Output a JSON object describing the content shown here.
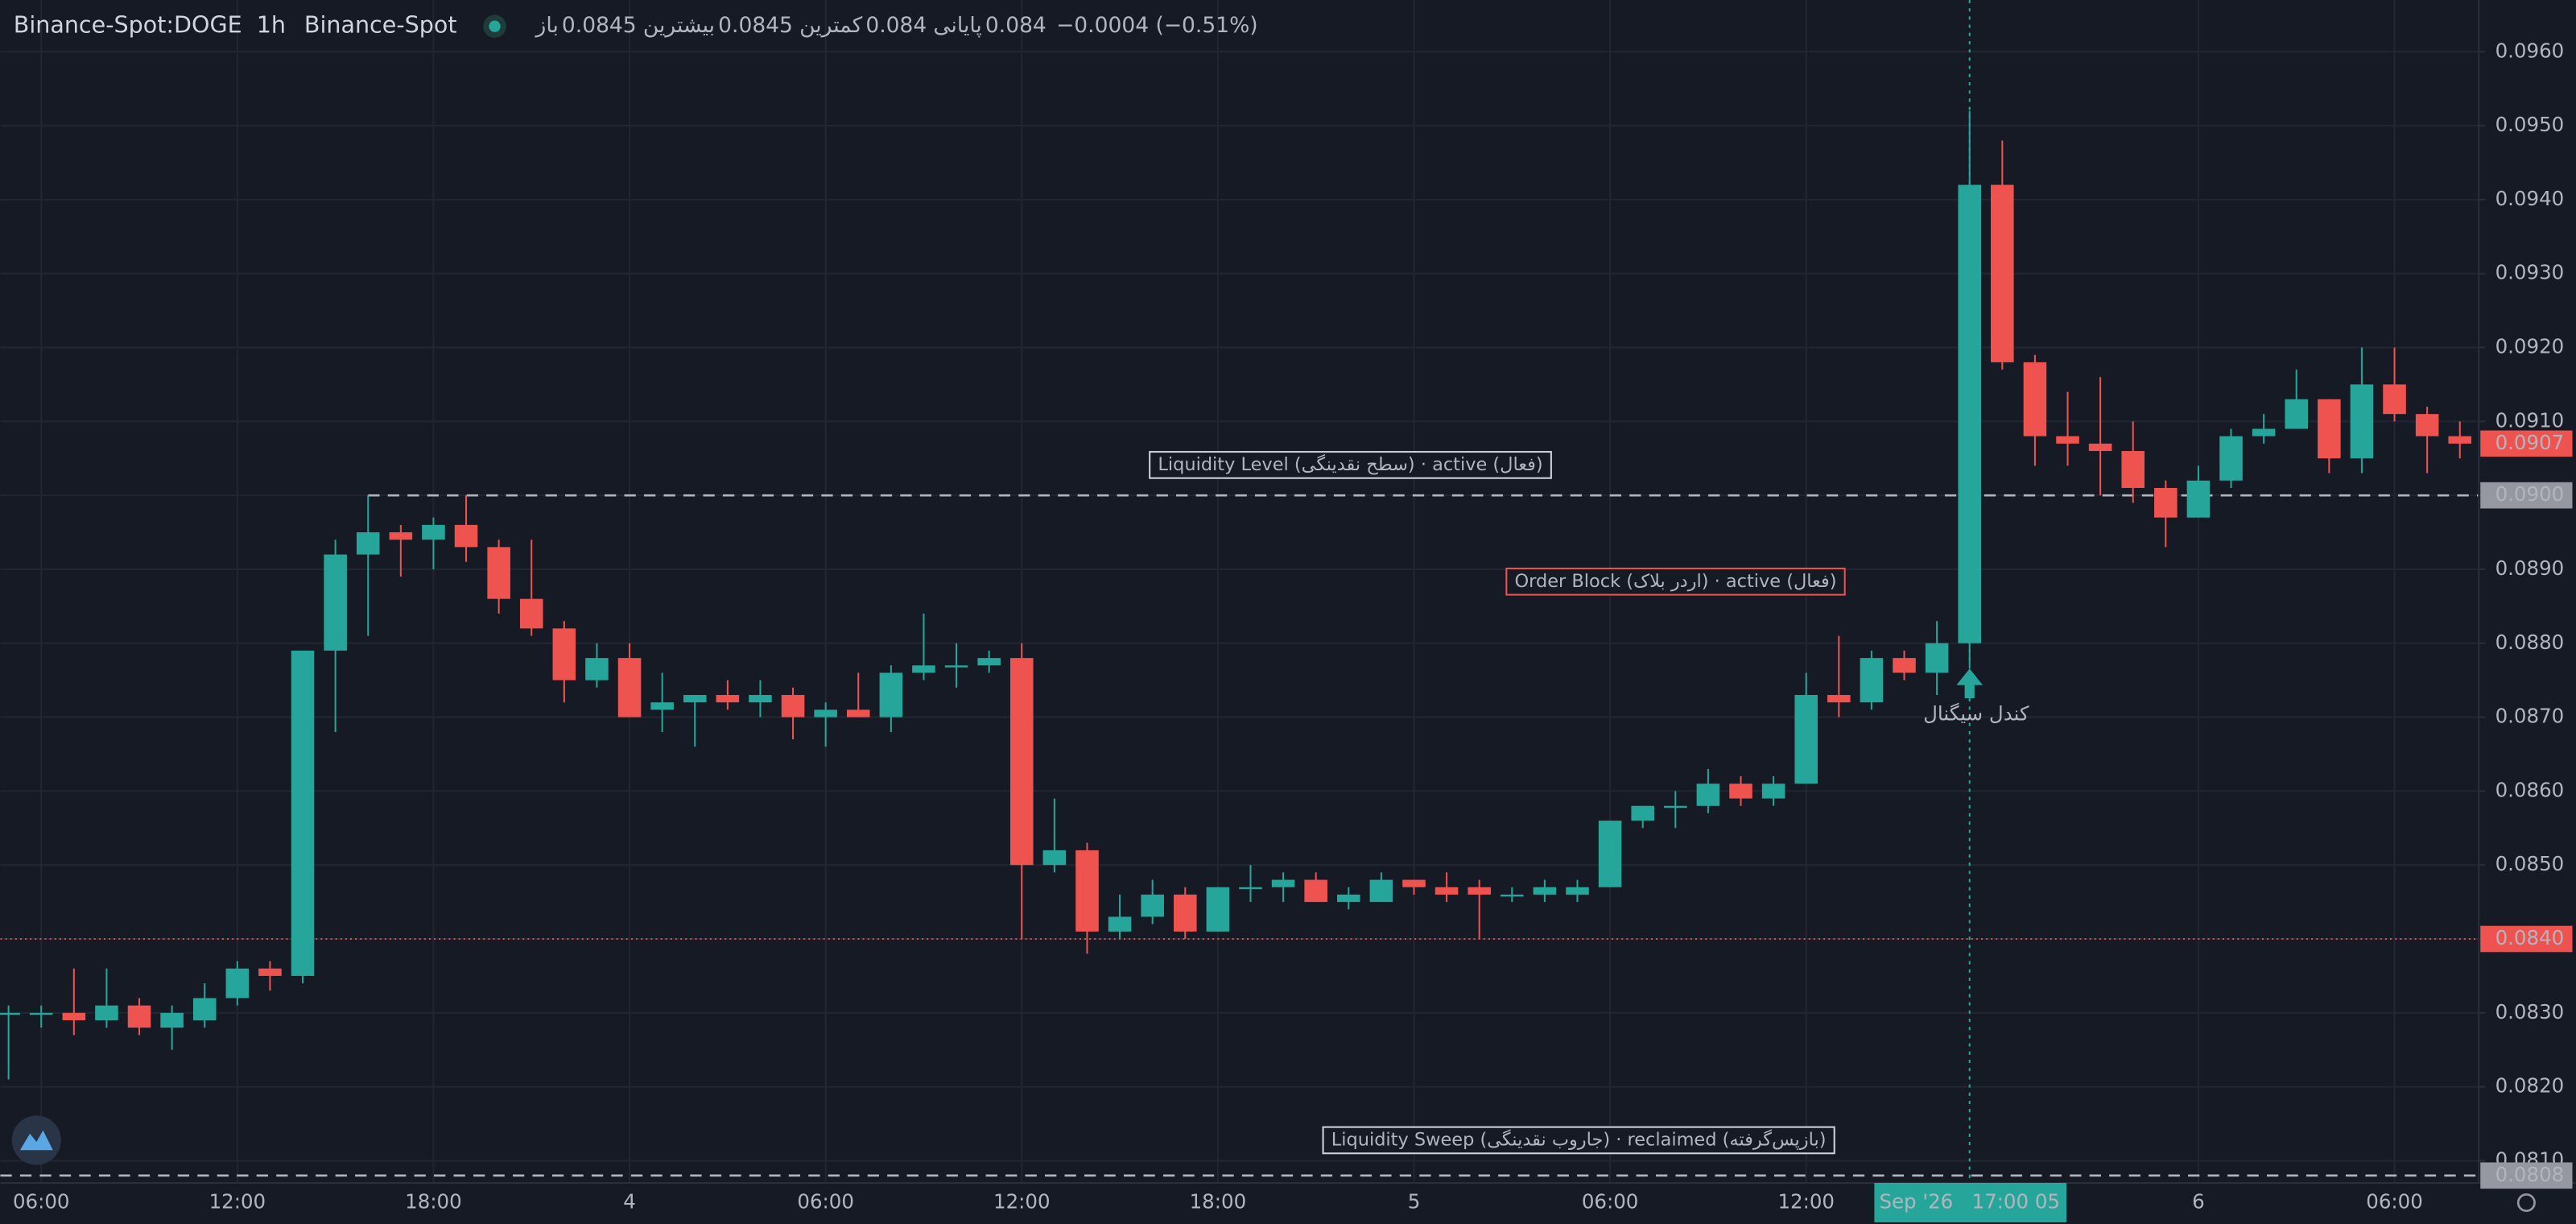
{
  "chart_data": {
    "type": "candlestick",
    "title": "Binance-Spot:DOGE",
    "interval": "1h",
    "exchange": "Binance-Spot",
    "ohlc_legend": [
      {
        "label": "باز",
        "value": 0.0845
      },
      {
        "label": "بیشترین",
        "value": 0.0845
      },
      {
        "label": "کمترین",
        "value": 0.084
      },
      {
        "label": "پایانی",
        "value": 0.084
      }
    ],
    "change": "−0.0004 (−0.51%)",
    "categories": [
      null,
      "06:00",
      null,
      null,
      null,
      null,
      null,
      "12:00",
      null,
      null,
      null,
      null,
      null,
      "18:00",
      null,
      null,
      null,
      null,
      null,
      "4",
      null,
      null,
      null,
      null,
      null,
      "06:00",
      null,
      null,
      null,
      null,
      null,
      "12:00",
      null,
      null,
      null,
      null,
      null,
      "18:00",
      null,
      null,
      null,
      null,
      null,
      "5",
      null,
      null,
      null,
      null,
      null,
      "06:00",
      null,
      null,
      null,
      null,
      null,
      "12:00",
      null,
      null,
      null,
      null,
      null,
      null,
      null,
      null,
      null,
      null,
      null,
      "6",
      null,
      null,
      null,
      null,
      null,
      "06:00",
      null,
      null
    ],
    "open": [
      0.083,
      0.083,
      0.083,
      0.0829,
      0.0831,
      0.0828,
      0.0829,
      0.0832,
      0.0836,
      0.0835,
      0.0879,
      0.0892,
      0.0895,
      0.0894,
      0.0896,
      0.0893,
      0.0886,
      0.0882,
      0.0875,
      0.0878,
      0.0871,
      0.0872,
      0.0873,
      0.0872,
      0.0873,
      0.087,
      0.0871,
      0.087,
      0.0876,
      0.0877,
      0.0877,
      0.0878,
      0.085,
      0.0852,
      0.0841,
      0.0843,
      0.0846,
      0.0841,
      0.0847,
      0.0847,
      0.0848,
      0.0845,
      0.0845,
      0.0848,
      0.0847,
      0.0847,
      0.0846,
      0.0846,
      0.0846,
      0.0847,
      0.0856,
      0.0858,
      0.0858,
      0.0861,
      0.0859,
      0.0861,
      0.0873,
      0.0872,
      0.0878,
      0.0876,
      0.088,
      0.0942,
      0.0918,
      0.0908,
      0.0907,
      0.0906,
      0.0901,
      0.0897,
      0.0902,
      0.0908,
      0.0909,
      0.0913,
      0.0905,
      0.0915,
      0.0911,
      0.0908
    ],
    "high": [
      0.0831,
      0.0831,
      0.0836,
      0.0836,
      0.0832,
      0.0831,
      0.0834,
      0.0837,
      0.0837,
      0.0879,
      0.0894,
      0.09,
      0.0896,
      0.0897,
      0.09,
      0.0894,
      0.0894,
      0.0883,
      0.088,
      0.088,
      0.0876,
      0.0873,
      0.0875,
      0.0875,
      0.0874,
      0.0872,
      0.0876,
      0.0877,
      0.0884,
      0.088,
      0.0879,
      0.088,
      0.0859,
      0.0853,
      0.0846,
      0.0848,
      0.0847,
      0.0847,
      0.085,
      0.0849,
      0.0849,
      0.0847,
      0.0849,
      0.0848,
      0.0849,
      0.0848,
      0.0847,
      0.0848,
      0.0848,
      0.0856,
      0.0858,
      0.086,
      0.0863,
      0.0862,
      0.0862,
      0.0876,
      0.0881,
      0.0879,
      0.0879,
      0.0883,
      0.0952,
      0.0948,
      0.0919,
      0.0914,
      0.0916,
      0.091,
      0.0902,
      0.0904,
      0.0909,
      0.0911,
      0.0917,
      0.0913,
      0.092,
      0.092,
      0.0912,
      0.091
    ],
    "low": [
      0.0821,
      0.0828,
      0.0827,
      0.0828,
      0.0827,
      0.0825,
      0.0828,
      0.0831,
      0.0833,
      0.0834,
      0.0868,
      0.0881,
      0.0889,
      0.089,
      0.0891,
      0.0884,
      0.0881,
      0.0872,
      0.0874,
      0.087,
      0.0868,
      0.0866,
      0.0871,
      0.087,
      0.0867,
      0.0866,
      0.087,
      0.0868,
      0.0875,
      0.0874,
      0.0876,
      0.084,
      0.0849,
      0.0838,
      0.084,
      0.0842,
      0.084,
      0.0841,
      0.0845,
      0.0845,
      0.0845,
      0.0844,
      0.0845,
      0.0846,
      0.0845,
      0.084,
      0.0845,
      0.0845,
      0.0845,
      0.0847,
      0.0855,
      0.0855,
      0.0857,
      0.0858,
      0.0858,
      0.0861,
      0.087,
      0.0871,
      0.0875,
      0.0873,
      0.0877,
      0.0917,
      0.0904,
      0.0904,
      0.09,
      0.0899,
      0.0893,
      0.0897,
      0.0901,
      0.0907,
      0.0909,
      0.0903,
      0.0903,
      0.091,
      0.0903,
      0.0905
    ],
    "close": [
      0.083,
      0.083,
      0.0829,
      0.0831,
      0.0828,
      0.083,
      0.0832,
      0.0836,
      0.0835,
      0.0879,
      0.0892,
      0.0895,
      0.0894,
      0.0896,
      0.0893,
      0.0886,
      0.0882,
      0.0875,
      0.0878,
      0.087,
      0.0872,
      0.0873,
      0.0872,
      0.0873,
      0.087,
      0.0871,
      0.087,
      0.0876,
      0.0877,
      0.0877,
      0.0878,
      0.085,
      0.0852,
      0.0841,
      0.0843,
      0.0846,
      0.0841,
      0.0847,
      0.0847,
      0.0848,
      0.0845,
      0.0846,
      0.0848,
      0.0847,
      0.0846,
      0.0846,
      0.0846,
      0.0847,
      0.0847,
      0.0856,
      0.0858,
      0.0858,
      0.0861,
      0.0859,
      0.0861,
      0.0873,
      0.0872,
      0.0878,
      0.0876,
      0.088,
      0.0942,
      0.0918,
      0.0908,
      0.0907,
      0.0906,
      0.0901,
      0.0897,
      0.0902,
      0.0908,
      0.0909,
      0.0913,
      0.0905,
      0.0915,
      0.0911,
      0.0908,
      0.0907
    ],
    "up_color": "#26a69a",
    "down_color": "#ef5350",
    "ylim": [
      0.0807,
      0.0967
    ],
    "yticks": [
      {
        "value": 0.081,
        "label": "0.0810"
      },
      {
        "value": 0.082,
        "label": "0.0820"
      },
      {
        "value": 0.083,
        "label": "0.0830"
      },
      {
        "value": 0.084,
        "label": "0.0840"
      },
      {
        "value": 0.085,
        "label": "0.0850"
      },
      {
        "value": 0.086,
        "label": "0.0860"
      },
      {
        "value": 0.087,
        "label": "0.0870"
      },
      {
        "value": 0.088,
        "label": "0.0880"
      },
      {
        "value": 0.089,
        "label": "0.0890"
      },
      {
        "value": 0.09,
        "label": "0.0900"
      },
      {
        "value": 0.091,
        "label": "0.0910"
      },
      {
        "value": 0.092,
        "label": "0.0920"
      },
      {
        "value": 0.093,
        "label": "0.0930"
      },
      {
        "value": 0.094,
        "label": "0.0940"
      },
      {
        "value": 0.095,
        "label": "0.0950"
      },
      {
        "value": 0.096,
        "label": "0.0960"
      }
    ],
    "grid": true,
    "price_labels": [
      {
        "value": 0.0907,
        "label": "0.0907",
        "color": "#ef5350",
        "line": "none"
      },
      {
        "value": 0.09,
        "label": "0.0900",
        "color": "#9598a1",
        "line": "dashed"
      },
      {
        "value": 0.084,
        "label": "0.0840",
        "color": "#ef5350",
        "line": "dotted"
      },
      {
        "value": 0.0808,
        "label": "0.0808",
        "color": "#9598a1",
        "line": "dashed"
      }
    ],
    "annotations": [
      "Liquidity Level (سطح نقدینگی) · active (فعال)",
      "Order Block (اردر بلاک) · active (فعال)",
      "Liquidity Sweep (جاروب نقدینگی) · reclaimed (بازپس‌گرفته)",
      "کندل سیگنال"
    ],
    "crosshair_label": "Sep '26   17:00 05"
  }
}
